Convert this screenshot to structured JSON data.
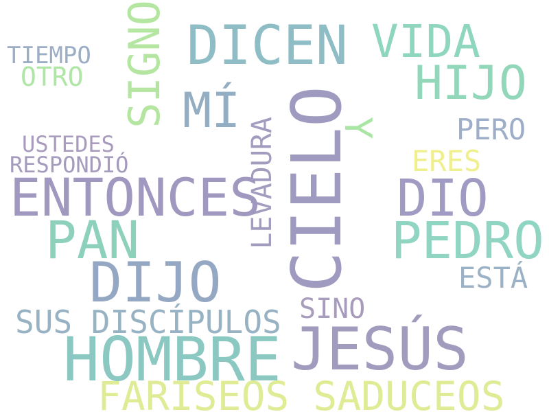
{
  "palette": {
    "purple": "#9f97bd",
    "teal": "#8ccbc0",
    "blue": "#94aec4",
    "green": "#a9e6a1",
    "yellow": "#eef08a",
    "lime": "#dbea94"
  },
  "words": {
    "jesus": "JESÚS",
    "cielo": "CIELO",
    "hombre": "HOMBRE",
    "dijo": "DIJO",
    "entonces": "ENTONCES",
    "dicen": "DICEN",
    "pan": "PAN",
    "fariseos_saduceos": "FARISEOS SADUCEOS",
    "pedro": "PEDRO",
    "hijo": "HIJO",
    "vida": "VIDA",
    "dio": "DIO",
    "signo": "SIGNO",
    "mi": "MÍ",
    "sus_discipulos": "SUS DISCÍPULOS",
    "levadura": "LEVADURA",
    "y": "Y",
    "pero": "PERO",
    "eres": "ERES",
    "esta": "ESTÁ",
    "sino": "SINO",
    "tiempo": "TIEMPO",
    "otro": "OTRO",
    "ustedes": "USTEDES",
    "respondio": "RESPONDIÓ"
  }
}
